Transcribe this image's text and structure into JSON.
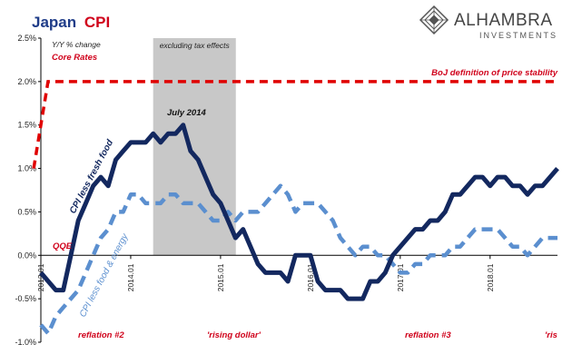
{
  "logo": {
    "name": "ALHAMBRA",
    "tagline": "INVESTMENTS"
  },
  "chart_data": {
    "type": "line",
    "title_prefix": "Japan",
    "title_suffix": "CPI",
    "subtitle_line1": "Y/Y % change",
    "subtitle_line2": "Core Rates",
    "ylim": [
      -1.0,
      2.5
    ],
    "yticks": [
      "2.5%",
      "2.0%",
      "1.5%",
      "1.0%",
      "0.5%",
      "0.0%",
      "-0.5%",
      "-1.0%"
    ],
    "ytick_values": [
      2.5,
      2.0,
      1.5,
      1.0,
      0.5,
      0.0,
      -0.5,
      -1.0
    ],
    "xlim": [
      2013.0,
      2018.75
    ],
    "xticks": [
      "2013.01",
      "2014.01",
      "2015.01",
      "2016.01",
      "2017.01",
      "2018.01"
    ],
    "xtick_values": [
      2013.0,
      2014.0,
      2015.0,
      2016.0,
      2017.0,
      2018.0
    ],
    "grid": false,
    "colors": {
      "title_red": "#d0021b",
      "title_blue": "#1f3c88",
      "core_dark": "#13285f",
      "core_light": "#5b8fcf",
      "boj_red": "#e00000",
      "shade": "#c8c8c8",
      "label_red": "#d0021b"
    },
    "shaded_region": {
      "label": "excluding tax effects",
      "x_start": 2014.25,
      "x_end": 2015.17
    },
    "boj_target": {
      "label": "BoJ definition of price stability",
      "y": 2.0,
      "x_values": [
        2012.92,
        2013.08,
        2018.75
      ],
      "y_values": [
        1.0,
        2.0,
        2.0
      ]
    },
    "series": [
      {
        "name": "CPI less fresh food",
        "style": "solid",
        "x_start": 2013.0,
        "values": [
          -0.2,
          -0.3,
          -0.4,
          -0.4,
          0.0,
          0.4,
          0.6,
          0.8,
          0.9,
          0.8,
          1.1,
          1.2,
          1.3,
          1.3,
          1.3,
          1.4,
          1.3,
          1.4,
          1.4,
          1.5,
          1.2,
          1.1,
          0.9,
          0.7,
          0.6,
          0.4,
          0.2,
          0.3,
          0.1,
          -0.1,
          -0.2,
          -0.2,
          -0.2,
          -0.3,
          0.0,
          0.0,
          0.0,
          -0.3,
          -0.4,
          -0.4,
          -0.4,
          -0.5,
          -0.5,
          -0.5,
          -0.3,
          -0.3,
          -0.2,
          0.0,
          0.1,
          0.2,
          0.3,
          0.3,
          0.4,
          0.4,
          0.5,
          0.7,
          0.7,
          0.8,
          0.9,
          0.9,
          0.8,
          0.9,
          0.9,
          0.8,
          0.8,
          0.7,
          0.8,
          0.8,
          0.9,
          1.0
        ]
      },
      {
        "name": "CPI less food & energy",
        "style": "dashed",
        "x_start": 2013.0,
        "values": [
          -0.8,
          -0.9,
          -0.7,
          -0.6,
          -0.5,
          -0.4,
          -0.2,
          0.0,
          0.2,
          0.3,
          0.5,
          0.5,
          0.7,
          0.7,
          0.6,
          0.6,
          0.6,
          0.7,
          0.7,
          0.6,
          0.6,
          0.6,
          0.5,
          0.4,
          0.4,
          0.5,
          0.4,
          0.5,
          0.5,
          0.5,
          0.6,
          0.7,
          0.8,
          0.7,
          0.5,
          0.6,
          0.6,
          0.6,
          0.5,
          0.4,
          0.2,
          0.1,
          0.0,
          0.1,
          0.1,
          0.0,
          0.0,
          -0.1,
          -0.2,
          -0.2,
          -0.1,
          -0.1,
          0.0,
          0.0,
          0.0,
          0.1,
          0.1,
          0.2,
          0.3,
          0.3,
          0.3,
          0.3,
          0.2,
          0.1,
          0.1,
          0.0,
          0.1,
          0.2,
          0.2,
          0.2
        ]
      }
    ],
    "annotations": {
      "july_2014": "July 2014",
      "qqe": "QQE",
      "reflation_2": "reflation #2",
      "rising_dollar": "'rising dollar'",
      "reflation_3": "reflation #3",
      "ris": "'ris"
    }
  }
}
